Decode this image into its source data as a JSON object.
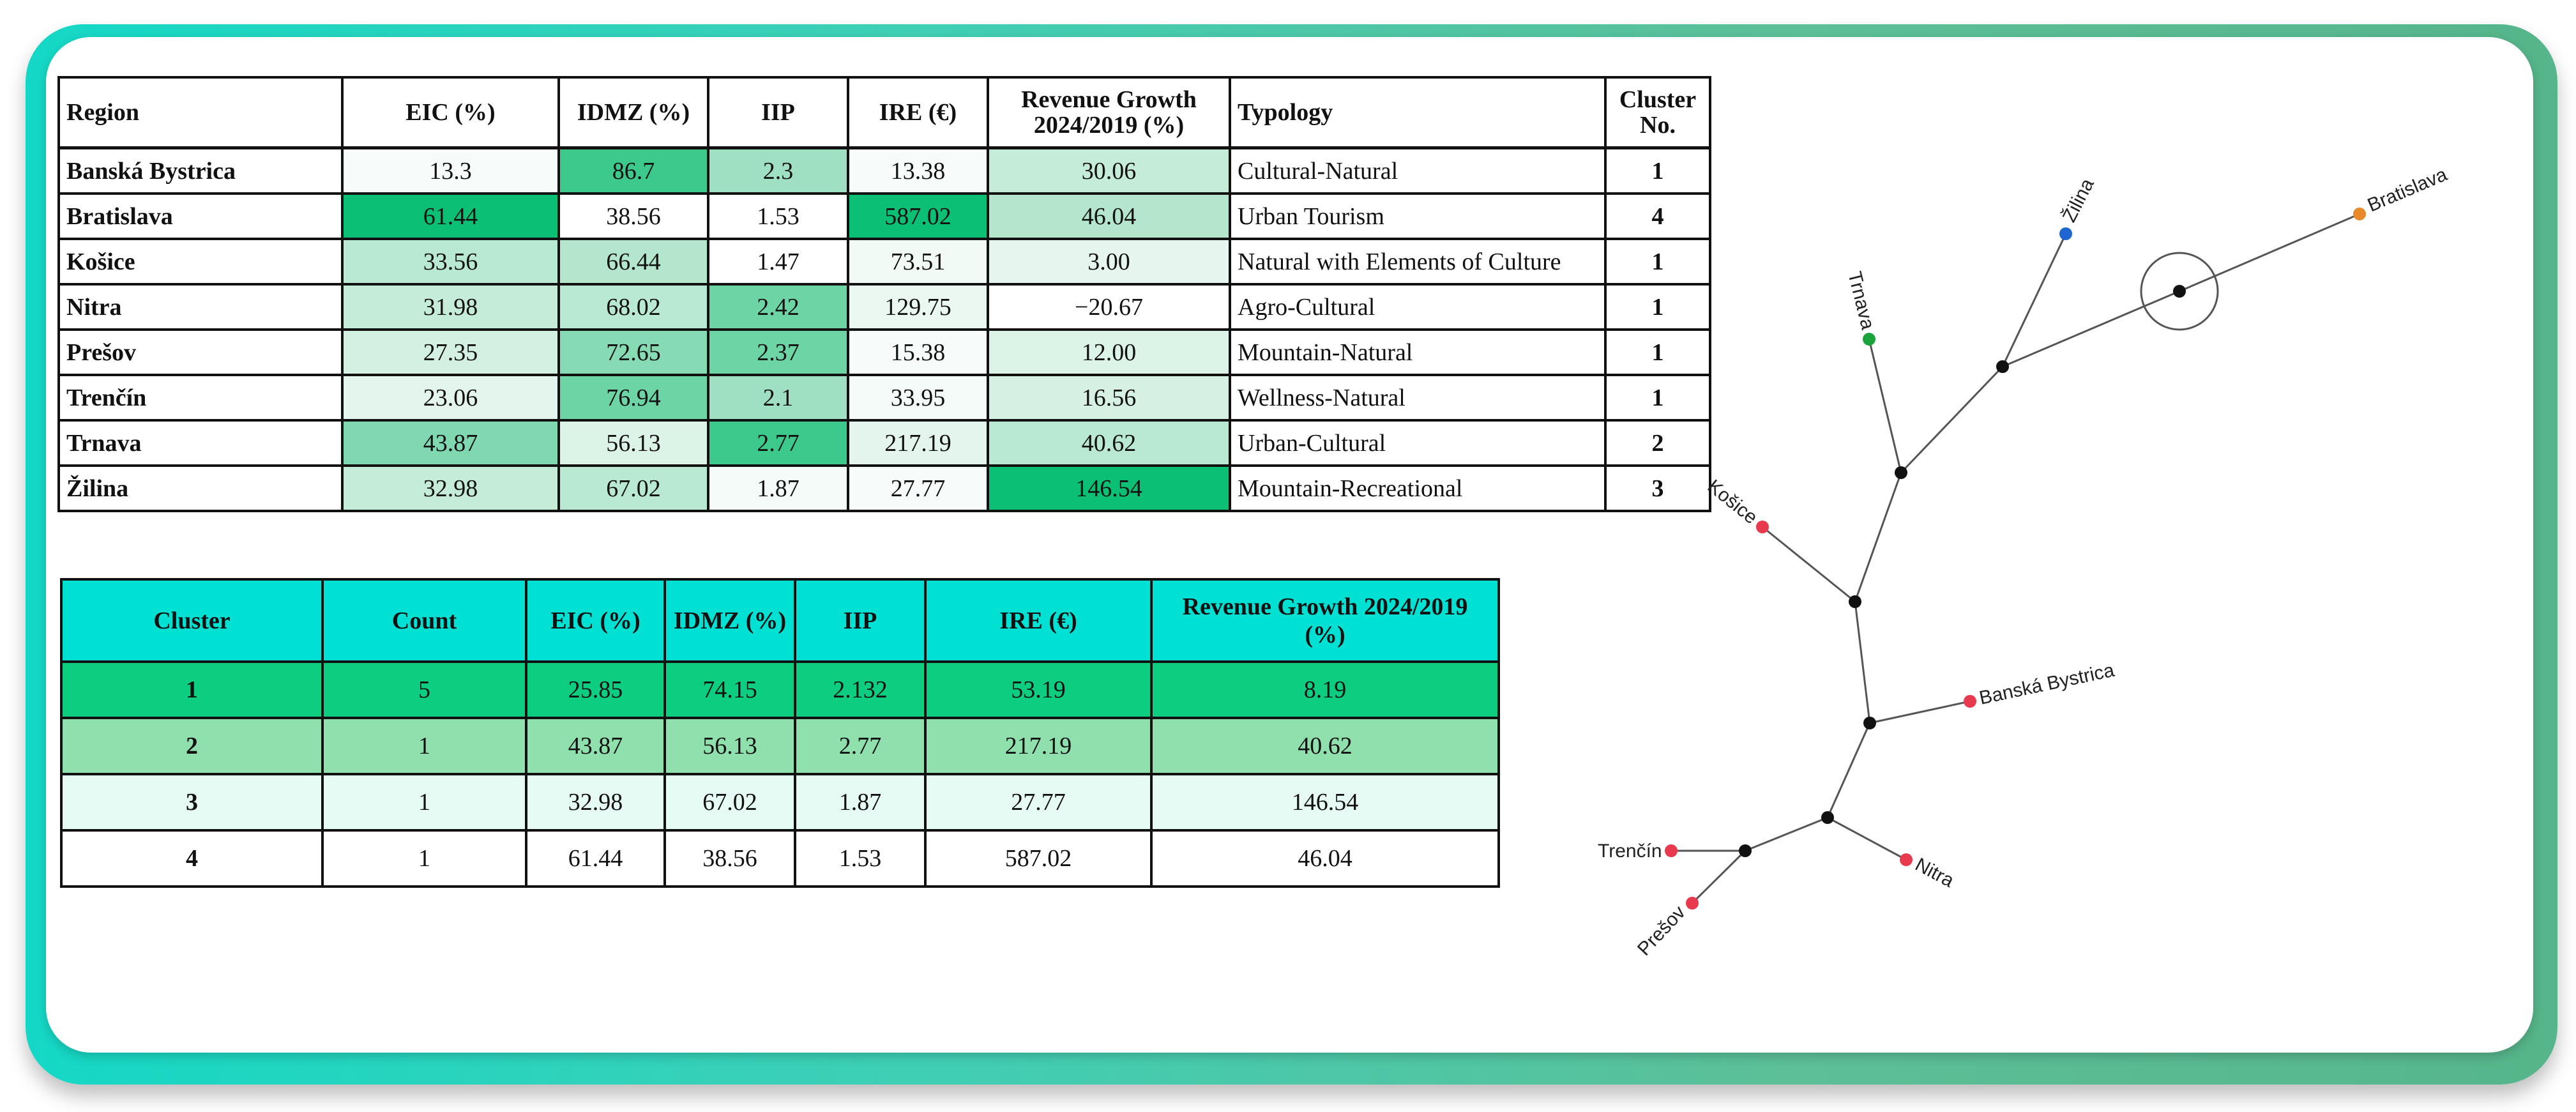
{
  "region_table": {
    "headers": {
      "region": "Region",
      "eic": "EIC (%)",
      "idmz": "IDMZ (%)",
      "iip": "IIP",
      "ire": "IRE (€)",
      "growth_line1": "Revenue Growth",
      "growth_line2": "2024/2019 (%)",
      "typology": "Typology",
      "cluster_line1": "Cluster",
      "cluster_line2": "No."
    },
    "rows": [
      {
        "region": "Banská Bystrica",
        "eic": "13.3",
        "idmz": "86.7",
        "iip": "2.3",
        "ire": "13.38",
        "growth": "30.06",
        "typology": "Cultural-Natural",
        "cluster": "1"
      },
      {
        "region": "Bratislava",
        "eic": "61.44",
        "idmz": "38.56",
        "iip": "1.53",
        "ire": "587.02",
        "growth": "46.04",
        "typology": "Urban Tourism",
        "cluster": "4"
      },
      {
        "region": "Košice",
        "eic": "33.56",
        "idmz": "66.44",
        "iip": "1.47",
        "ire": "73.51",
        "growth": "3.00",
        "typology": "Natural with Elements of Culture",
        "cluster": "1"
      },
      {
        "region": "Nitra",
        "eic": "31.98",
        "idmz": "68.02",
        "iip": "2.42",
        "ire": "129.75",
        "growth": "−20.67",
        "typology": "Agro-Cultural",
        "cluster": "1"
      },
      {
        "region": "Prešov",
        "eic": "27.35",
        "idmz": "72.65",
        "iip": "2.37",
        "ire": "15.38",
        "growth": "12.00",
        "typology": "Mountain-Natural",
        "cluster": "1"
      },
      {
        "region": "Trenčín",
        "eic": "23.06",
        "idmz": "76.94",
        "iip": "2.1",
        "ire": "33.95",
        "growth": "16.56",
        "typology": "Wellness-Natural",
        "cluster": "1"
      },
      {
        "region": "Trnava",
        "eic": "43.87",
        "idmz": "56.13",
        "iip": "2.77",
        "ire": "217.19",
        "growth": "40.62",
        "typology": "Urban-Cultural",
        "cluster": "2"
      },
      {
        "region": "Žilina",
        "eic": "32.98",
        "idmz": "67.02",
        "iip": "1.87",
        "ire": "27.77",
        "growth": "146.54",
        "typology": "Mountain-Recreational",
        "cluster": "3"
      }
    ],
    "cell_colors": [
      {
        "eic": "#f7fcfa",
        "idmz": "#3ec98c",
        "iip": "#9fe0c2",
        "ire": "#f7fcfa",
        "growth": "#c5ecd9"
      },
      {
        "eic": "#0bbf74",
        "idmz": "#ffffff",
        "iip": "#ffffff",
        "ire": "#0bbf74",
        "growth": "#b3e6cc"
      },
      {
        "eic": "#b9e9d2",
        "idmz": "#b3e6cc",
        "iip": "#ffffff",
        "ire": "#f2faf6",
        "growth": "#e6f6ee"
      },
      {
        "eic": "#c5ecd9",
        "idmz": "#b9e9d2",
        "iip": "#6dd4a6",
        "ire": "#eaf8f1",
        "growth": "#ffffff"
      },
      {
        "eic": "#d3f0e2",
        "idmz": "#86dbb4",
        "iip": "#6dd4a6",
        "ire": "#f7fcfa",
        "growth": "#dcf3e8"
      },
      {
        "eic": "#e3f5ec",
        "idmz": "#6dd4a6",
        "iip": "#9fe0c2",
        "ire": "#f4fbf8",
        "growth": "#d6f1e4"
      },
      {
        "eic": "#7fd8af",
        "idmz": "#dcf3e8",
        "iip": "#3ec98c",
        "ire": "#e3f5ec",
        "growth": "#b9e9d2"
      },
      {
        "eic": "#c5ecd9",
        "idmz": "#b9e9d2",
        "iip": "#f4fbf8",
        "ire": "#f7fcfa",
        "growth": "#0bbf74"
      }
    ]
  },
  "cluster_table": {
    "headers": {
      "cluster": "Cluster",
      "count": "Count",
      "eic": "EIC (%)",
      "idmz": "IDMZ (%)",
      "iip": "IIP",
      "ire": "IRE (€)",
      "growth_line1": "Revenue Growth 2024/2019",
      "growth_line2": "(%)"
    },
    "rows": [
      {
        "cluster": "1",
        "count": "5",
        "eic": "25.85",
        "idmz": "74.15",
        "iip": "2.132",
        "ire": "53.19",
        "growth": "8.19",
        "color": "#0ccd80"
      },
      {
        "cluster": "2",
        "count": "1",
        "eic": "43.87",
        "idmz": "56.13",
        "iip": "2.77",
        "ire": "217.19",
        "growth": "40.62",
        "color": "#8fe0ad"
      },
      {
        "cluster": "3",
        "count": "1",
        "eic": "32.98",
        "idmz": "67.02",
        "iip": "1.87",
        "ire": "27.77",
        "growth": "146.54",
        "color": "#e6fbf3"
      },
      {
        "cluster": "4",
        "count": "1",
        "eic": "61.44",
        "idmz": "38.56",
        "iip": "1.53",
        "ire": "587.02",
        "growth": "46.04",
        "color": "#ffffff"
      }
    ]
  },
  "tree": {
    "leaf_labels": {
      "zilina": "Žilina",
      "bratislava": "Bratislava",
      "trnava": "Trnava",
      "kosice": "Košice",
      "banska": "Banská Bystrica",
      "trencin": "Trenčín",
      "presov": "Prešov",
      "nitra": "Nitra"
    },
    "colors": {
      "cluster1": "#e83a4e",
      "cluster2": "#1aa33c",
      "cluster3": "#1f66d1",
      "cluster4": "#e8892a",
      "internal": "#111111",
      "edge": "#555555"
    }
  }
}
